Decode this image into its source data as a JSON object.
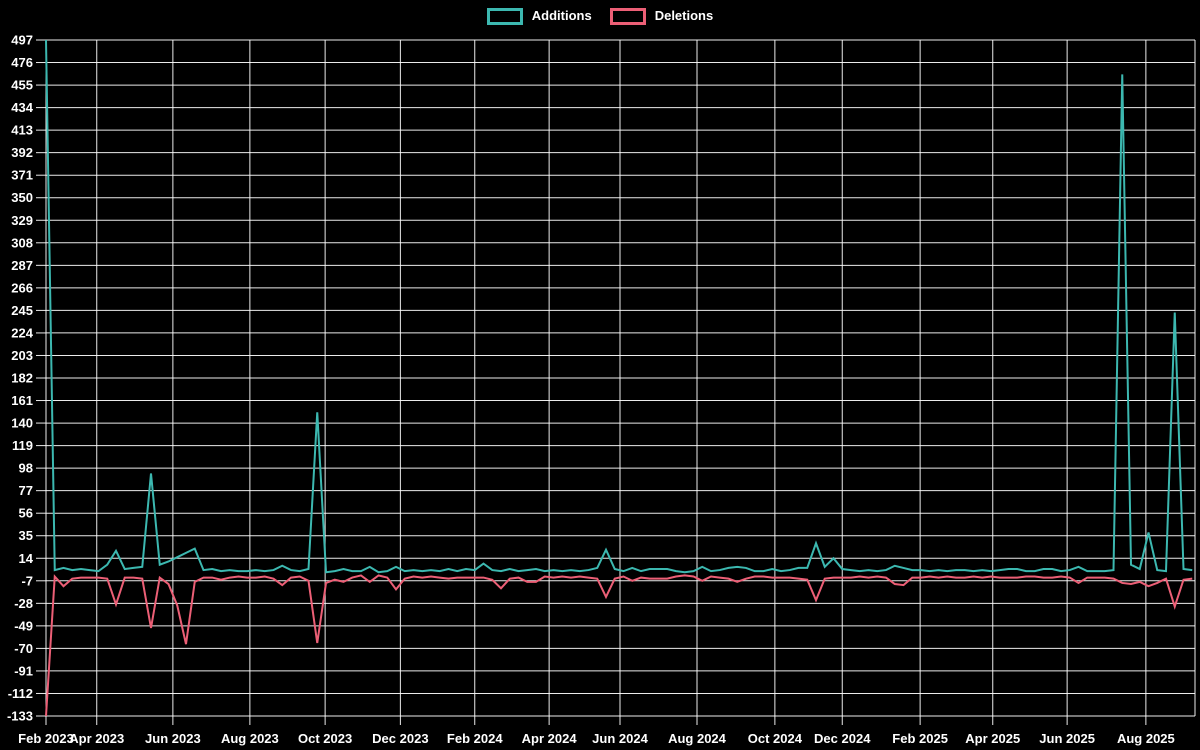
{
  "page": {
    "background_color": "#000000",
    "text_color": "#ffffff"
  },
  "chart_data": {
    "type": "line",
    "title": "",
    "xlabel": "",
    "ylabel": "",
    "x_unit": "weekly data points, Feb 2023 – Sep 2025",
    "background_color": "#000000",
    "grid": true,
    "grid_color": "#ffffff",
    "text_color": "#ffffff",
    "legend_position": "top-center",
    "ylim": [
      -133,
      497
    ],
    "y_ticks": [
      497,
      476,
      455,
      434,
      413,
      392,
      371,
      350,
      329,
      308,
      287,
      266,
      245,
      224,
      203,
      182,
      161,
      140,
      119,
      98,
      77,
      56,
      35,
      14,
      -7,
      -28,
      -49,
      -70,
      -91,
      -112,
      -133
    ],
    "x_ticks": [
      {
        "label": "Feb 2023",
        "week": 0
      },
      {
        "label": "Apr 2023",
        "week": 5.8
      },
      {
        "label": "Jun 2023",
        "week": 14.5
      },
      {
        "label": "Aug 2023",
        "week": 23.3
      },
      {
        "label": "Oct 2023",
        "week": 31.9
      },
      {
        "label": "Dec 2023",
        "week": 40.5
      },
      {
        "label": "Feb 2024",
        "week": 49.0
      },
      {
        "label": "Apr 2024",
        "week": 57.5
      },
      {
        "label": "Jun 2024",
        "week": 65.6
      },
      {
        "label": "Aug 2024",
        "week": 74.4
      },
      {
        "label": "Oct 2024",
        "week": 83.3
      },
      {
        "label": "Dec 2024",
        "week": 91.0
      },
      {
        "label": "Feb 2025",
        "week": 99.9
      },
      {
        "label": "Apr 2025",
        "week": 108.2
      },
      {
        "label": "Jun 2025",
        "week": 116.7
      },
      {
        "label": "Aug 2025",
        "week": 125.7
      }
    ],
    "series": [
      {
        "name": "Additions",
        "color": "#3cb8b0",
        "values": [
          497,
          3,
          5,
          3,
          4,
          3,
          2,
          8,
          21,
          4,
          5,
          6,
          93,
          8,
          11,
          15,
          19,
          23,
          3,
          4,
          2,
          3,
          2,
          2,
          3,
          2,
          3,
          7,
          3,
          2,
          4,
          150,
          1,
          2,
          4,
          2,
          2,
          6,
          1,
          2,
          6,
          2,
          3,
          2,
          3,
          2,
          4,
          2,
          4,
          3,
          9,
          3,
          2,
          4,
          2,
          3,
          4,
          2,
          3,
          2,
          3,
          2,
          3,
          5,
          22,
          4,
          2,
          5,
          2,
          4,
          4,
          4,
          2,
          1,
          2,
          6,
          2,
          3,
          5,
          6,
          5,
          2,
          2,
          4,
          2,
          3,
          5,
          5,
          28,
          6,
          14,
          4,
          3,
          2,
          3,
          2,
          3,
          7,
          5,
          3,
          3,
          2,
          3,
          2,
          3,
          3,
          2,
          3,
          2,
          3,
          4,
          4,
          2,
          2,
          4,
          4,
          2,
          3,
          6,
          2,
          2,
          2,
          3,
          465,
          8,
          4,
          38,
          3,
          2,
          243,
          4,
          3
        ]
      },
      {
        "name": "Deletions",
        "color": "#ec5f76",
        "values": [
          -133,
          -3,
          -12,
          -5,
          -4,
          -4,
          -4,
          -5,
          -29,
          -4,
          -4,
          -5,
          -51,
          -4,
          -10,
          -30,
          -66,
          -8,
          -4,
          -4,
          -6,
          -4,
          -3,
          -4,
          -4,
          -3,
          -5,
          -11,
          -4,
          -3,
          -7,
          -65,
          -9,
          -6,
          -8,
          -4,
          -2,
          -8,
          -2,
          -4,
          -15,
          -5,
          -3,
          -4,
          -3,
          -4,
          -5,
          -4,
          -4,
          -4,
          -4,
          -6,
          -14,
          -5,
          -4,
          -8,
          -8,
          -3,
          -4,
          -3,
          -4,
          -3,
          -4,
          -5,
          -22,
          -5,
          -3,
          -7,
          -4,
          -5,
          -5,
          -5,
          -3,
          -2,
          -3,
          -7,
          -3,
          -4,
          -5,
          -8,
          -5,
          -3,
          -3,
          -4,
          -4,
          -4,
          -5,
          -6,
          -25,
          -5,
          -4,
          -4,
          -4,
          -3,
          -4,
          -3,
          -4,
          -10,
          -11,
          -4,
          -4,
          -3,
          -4,
          -3,
          -4,
          -4,
          -3,
          -4,
          -3,
          -4,
          -4,
          -4,
          -3,
          -3,
          -4,
          -4,
          -3,
          -4,
          -9,
          -4,
          -4,
          -4,
          -5,
          -9,
          -10,
          -8,
          -12,
          -9,
          -5,
          -31,
          -6,
          -5
        ]
      }
    ]
  }
}
